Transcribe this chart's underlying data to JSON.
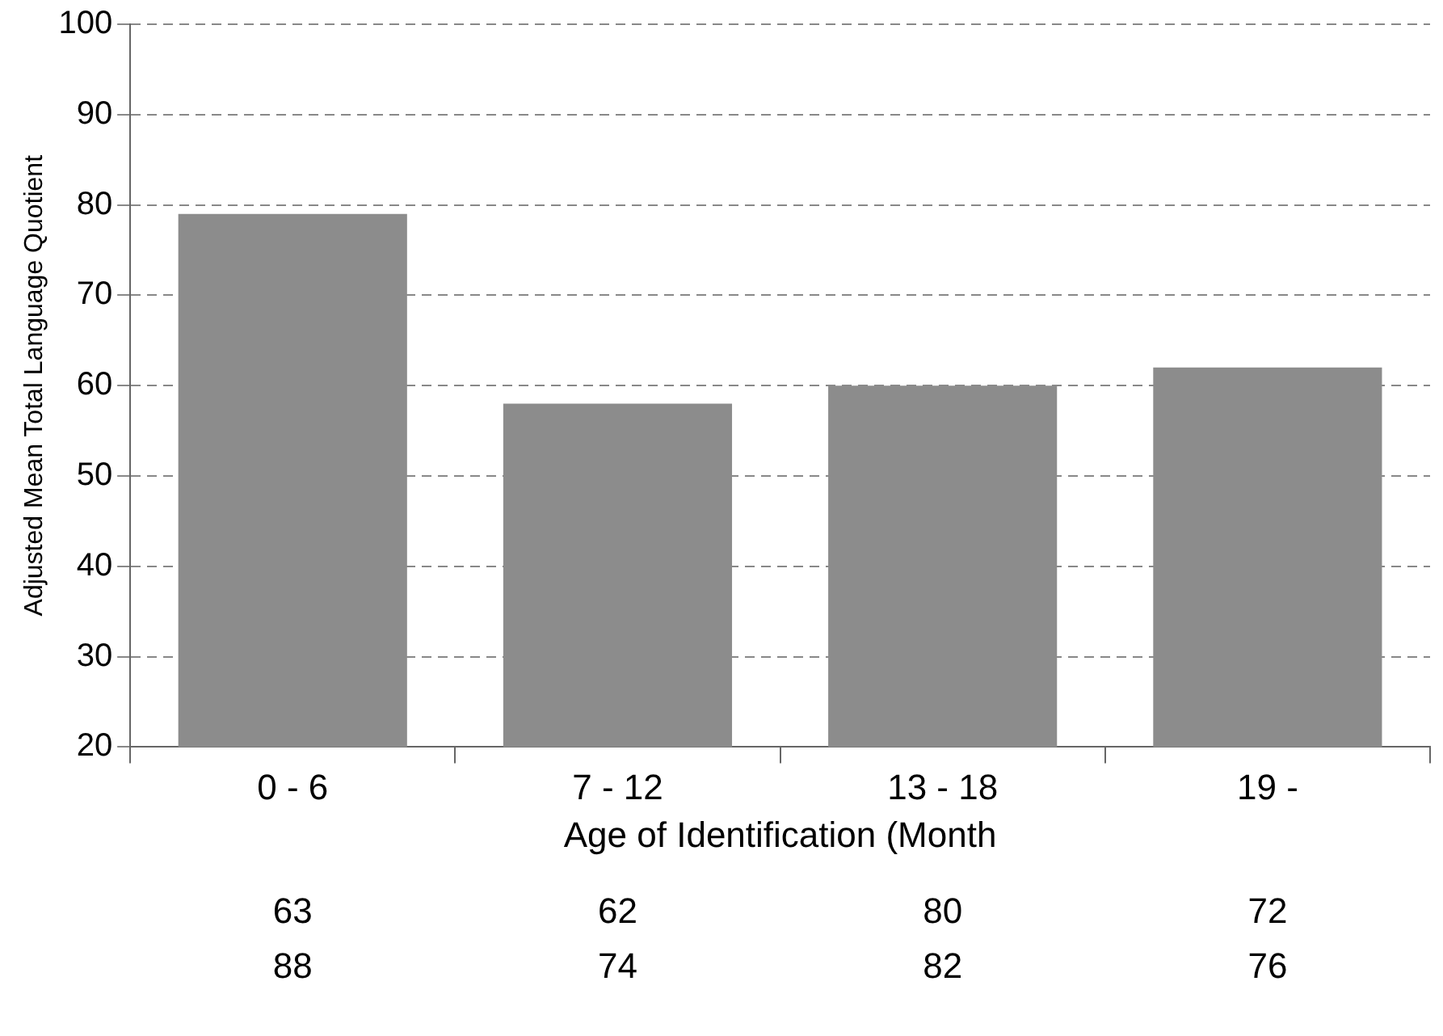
{
  "chart_data": {
    "type": "bar",
    "xlabel": "Age of Identification (Month",
    "ylabel": "Adjusted Mean Total Language Quotient",
    "categories": [
      "0 - 6",
      "7 - 12",
      "13 - 18",
      "19 -"
    ],
    "values": [
      79,
      58,
      60,
      62
    ],
    "color": "#8c8c8c",
    "ylim": [
      20,
      100
    ],
    "yticks": [
      20,
      30,
      40,
      50,
      60,
      70,
      80,
      90,
      100
    ],
    "grid": "y",
    "annotations": [
      "63",
      "62",
      "80",
      "72",
      "88",
      "74",
      "82",
      "76"
    ]
  }
}
